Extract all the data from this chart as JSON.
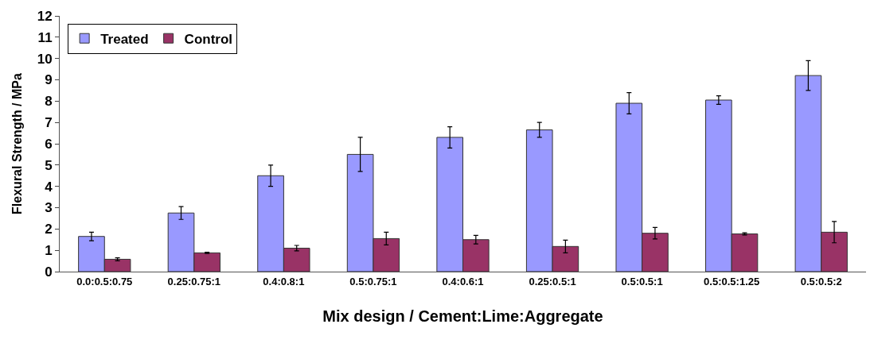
{
  "chart_data": {
    "type": "bar",
    "xlabel": "Mix design / Cement:Lime:Aggregate",
    "ylabel": "Flexural Strength / MPa",
    "categories": [
      "0.0:0.5:0.75",
      "0.25:0.75:1",
      "0.4:0.8:1",
      "0.5:0.75:1",
      "0.4:0.6:1",
      "0.25:0.5:1",
      "0.5:0.5:1",
      "0.5:0.5:1.25",
      "0.5:0.5:2"
    ],
    "series": [
      {
        "name": "Treated",
        "color": "#9999ff",
        "values": [
          1.65,
          2.75,
          4.5,
          5.5,
          6.3,
          6.65,
          7.9,
          8.05,
          9.2
        ],
        "errors": [
          0.2,
          0.3,
          0.5,
          0.8,
          0.5,
          0.35,
          0.5,
          0.2,
          0.7
        ]
      },
      {
        "name": "Control",
        "color": "#993366",
        "values": [
          0.58,
          0.88,
          1.1,
          1.55,
          1.5,
          1.18,
          1.8,
          1.77,
          1.85
        ],
        "errors": [
          0.07,
          0.03,
          0.13,
          0.3,
          0.2,
          0.3,
          0.27,
          0.05,
          0.5
        ]
      }
    ],
    "ylim": [
      0,
      12
    ],
    "yticks": [
      0,
      1,
      2,
      3,
      4,
      5,
      6,
      7,
      8,
      9,
      10,
      11,
      12
    ],
    "legend": "top left"
  }
}
